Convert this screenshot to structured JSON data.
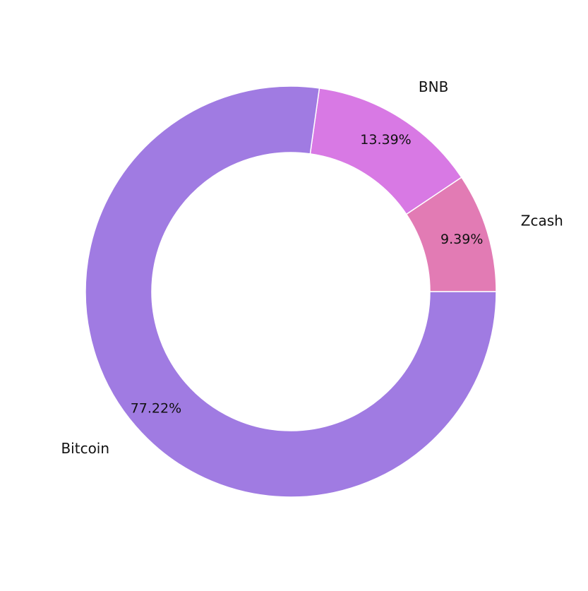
{
  "chart_data": {
    "type": "donut",
    "categories": [
      "Zcash",
      "BNB",
      "Bitcoin"
    ],
    "values": [
      9.39,
      13.39,
      77.22
    ],
    "value_labels": [
      "9.39%",
      "13.39%",
      "77.22%"
    ],
    "colors": [
      "#e27bb4",
      "#d879e4",
      "#a07be2"
    ]
  }
}
